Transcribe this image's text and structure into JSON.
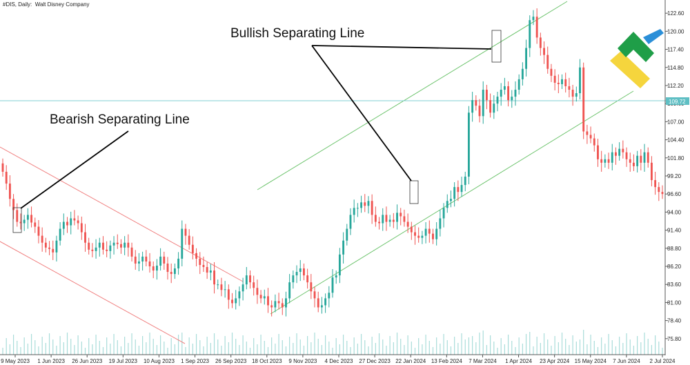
{
  "header": {
    "symbol": "#DIS, Daily:",
    "company": "Walt Disney Company"
  },
  "annotations": {
    "bullish": "Bullish Separating Line",
    "bearish": "Bearish Separating Line"
  },
  "colors": {
    "up": "#26a69a",
    "down": "#ef5350",
    "bearish_channel": "#f08080",
    "bullish_channel": "#6cc36c",
    "level_line": "#7fcfd3",
    "level_box": "#5fbfc4",
    "volume": "#a8dcd9"
  },
  "chart_data": {
    "type": "candlestick",
    "title": "",
    "ylim": [
      73.5,
      124.5
    ],
    "y_ticks": [
      "122.60",
      "120.00",
      "117.40",
      "114.80",
      "112.20",
      "109.60",
      "107.00",
      "104.40",
      "101.80",
      "99.20",
      "96.60",
      "94.00",
      "91.40",
      "88.80",
      "86.20",
      "83.60",
      "81.00",
      "78.40",
      "75.80"
    ],
    "x_ticks": [
      "9 May 2023",
      "1 Jun 2023",
      "26 Jun 2023",
      "19 Jul 2023",
      "10 Aug 2023",
      "1 Sep 2023",
      "26 Sep 2023",
      "18 Oct 2023",
      "9 Nov 2023",
      "4 Dec 2023",
      "27 Dec 2023",
      "22 Jan 2024",
      "13 Feb 2024",
      "7 Mar 2024",
      "1 Apr 2024",
      "23 Apr 2024",
      "15 May 2024",
      "7 Jun 2024",
      "2 Jul 2024"
    ],
    "horizontal_level": 109.72,
    "horizontal_level_label": "109.72",
    "closes": [
      99.8,
      98.1,
      95.9,
      94.3,
      92.6,
      92.4,
      92.9,
      93.6,
      92.5,
      91.9,
      90.6,
      89.6,
      88.9,
      88.7,
      88.2,
      89.9,
      91.6,
      92.6,
      92.1,
      93.1,
      92.8,
      92.4,
      91.1,
      89.6,
      88.6,
      88.4,
      88.9,
      89.6,
      88.6,
      88.4,
      89.2,
      89.6,
      89.4,
      88.9,
      89.6,
      88.9,
      87.6,
      86.6,
      86.9,
      87.6,
      86.9,
      86.2,
      85.6,
      86.3,
      87.6,
      86.6,
      85.4,
      85.1,
      85.9,
      87.3,
      91.6,
      90.6,
      89.3,
      88.1,
      87.3,
      86.4,
      86.1,
      85.3,
      85.6,
      83.6,
      83.6,
      82.8,
      82.9,
      81.4,
      80.9,
      81.6,
      82.6,
      83.6,
      84.9,
      83.9,
      83.1,
      82.1,
      81.6,
      81.9,
      80.6,
      80.3,
      81.2,
      80.9,
      80.3,
      81.6,
      83.9,
      84.9,
      85.4,
      85.9,
      84.9,
      83.9,
      82.6,
      81.6,
      80.3,
      80.6,
      81.6,
      82.4,
      84.6,
      84.9,
      87.9,
      89.9,
      91.6,
      93.6,
      94.6,
      94.6,
      95.4,
      94.9,
      95.6,
      93.6,
      92.6,
      92.4,
      93.6,
      92.6,
      92.9,
      92.6,
      93.9,
      93.4,
      92.6,
      91.9,
      91.1,
      90.6,
      90.3,
      90.6,
      91.6,
      90.9,
      90.1,
      91.6,
      93.1,
      94.6,
      95.6,
      95.9,
      97.6,
      96.9,
      97.9,
      99.1,
      108.3,
      110.1,
      109.3,
      107.8,
      111.6,
      110.1,
      108.3,
      109.6,
      110.6,
      111.6,
      112.1,
      110.1,
      110.6,
      111.6,
      113.1,
      114.6,
      117.6,
      121.6,
      122.1,
      119.1,
      117.6,
      116.6,
      114.6,
      113.6,
      112.6,
      112.4,
      113.1,
      112.1,
      111.6,
      110.6,
      111.1,
      114.8,
      105.6,
      105.1,
      104.6,
      103.6,
      101.6,
      101.1,
      101.6,
      101.1,
      102.6,
      102.1,
      103.1,
      102.6,
      101.6,
      101.1,
      100.6,
      102.1,
      101.1,
      102.6,
      101.1,
      98.6,
      97.6,
      96.9,
      96.6
    ]
  }
}
